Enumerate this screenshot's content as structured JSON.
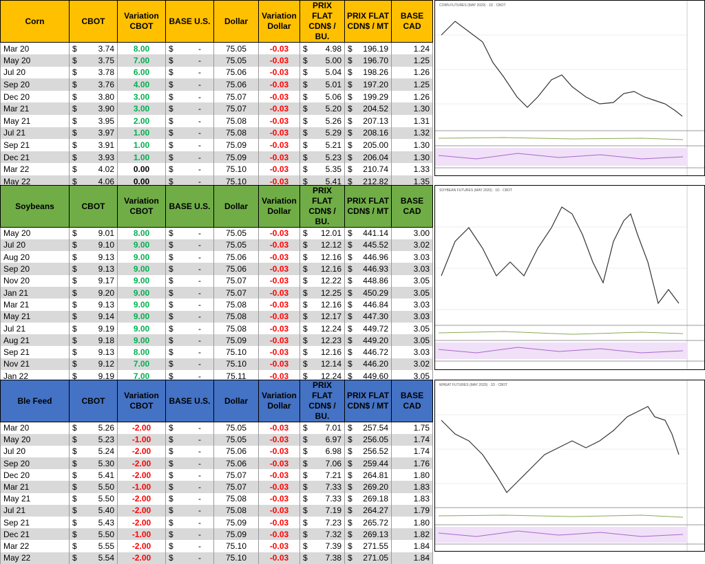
{
  "currency_symbol": "$",
  "tables": [
    {
      "header": [
        "Corn",
        "CBOT",
        "Variation CBOT",
        "BASE U.S.",
        "Dollar",
        "Variation Dollar",
        "PRIX FLAT CDN$ / BU.",
        "PRIX FLAT CDN$ / MT",
        "BASE CAD"
      ],
      "chart_title": "CORN FUTURES (MAY 2020) · 1D · CBOT",
      "rows": [
        [
          "Mar 20",
          "3.74",
          "8.00",
          "-",
          "75.05",
          "-0.03",
          "4.98",
          "196.19",
          "1.24"
        ],
        [
          "May 20",
          "3.75",
          "7.00",
          "-",
          "75.05",
          "-0.03",
          "5.00",
          "196.70",
          "1.25"
        ],
        [
          "Jul 20",
          "3.78",
          "6.00",
          "-",
          "75.06",
          "-0.03",
          "5.04",
          "198.26",
          "1.26"
        ],
        [
          "Sep 20",
          "3.76",
          "4.00",
          "-",
          "75.06",
          "-0.03",
          "5.01",
          "197.20",
          "1.25"
        ],
        [
          "Dec 20",
          "3.80",
          "3.00",
          "-",
          "75.07",
          "-0.03",
          "5.06",
          "199.29",
          "1.26"
        ],
        [
          "Mar 21",
          "3.90",
          "3.00",
          "-",
          "75.07",
          "-0.03",
          "5.20",
          "204.52",
          "1.30"
        ],
        [
          "May 21",
          "3.95",
          "2.00",
          "-",
          "75.08",
          "-0.03",
          "5.26",
          "207.13",
          "1.31"
        ],
        [
          "Jul 21",
          "3.97",
          "1.00",
          "-",
          "75.08",
          "-0.03",
          "5.29",
          "208.16",
          "1.32"
        ],
        [
          "Sep 21",
          "3.91",
          "1.00",
          "-",
          "75.09",
          "-0.03",
          "5.21",
          "205.00",
          "1.30"
        ],
        [
          "Dec 21",
          "3.93",
          "1.00",
          "-",
          "75.09",
          "-0.03",
          "5.23",
          "206.04",
          "1.30"
        ],
        [
          "Mar 22",
          "4.02",
          "0.00",
          "-",
          "75.10",
          "-0.03",
          "5.35",
          "210.74",
          "1.33"
        ],
        [
          "May 22",
          "4.06",
          "0.00",
          "-",
          "75.10",
          "-0.03",
          "5.41",
          "212.82",
          "1.35"
        ]
      ]
    },
    {
      "header": [
        "Soybeans",
        "CBOT",
        "Variation CBOT",
        "BASE U.S.",
        "Dollar",
        "Variation Dollar",
        "PRIX FLAT CDN$ / BU.",
        "PRIX FLAT CDN$ / MT",
        "BASE CAD"
      ],
      "chart_title": "SOYBEAN FUTURES (MAY 2020) · 1D · CBOT",
      "rows": [
        [
          "May 20",
          "9.01",
          "8.00",
          "-",
          "75.05",
          "-0.03",
          "12.01",
          "441.14",
          "3.00"
        ],
        [
          "Jul 20",
          "9.10",
          "9.00",
          "-",
          "75.05",
          "-0.03",
          "12.12",
          "445.52",
          "3.02"
        ],
        [
          "Aug 20",
          "9.13",
          "9.00",
          "-",
          "75.06",
          "-0.03",
          "12.16",
          "446.96",
          "3.03"
        ],
        [
          "Sep 20",
          "9.13",
          "9.00",
          "-",
          "75.06",
          "-0.03",
          "12.16",
          "446.93",
          "3.03"
        ],
        [
          "Nov 20",
          "9.17",
          "9.00",
          "-",
          "75.07",
          "-0.03",
          "12.22",
          "448.86",
          "3.05"
        ],
        [
          "Jan 21",
          "9.20",
          "9.00",
          "-",
          "75.07",
          "-0.03",
          "12.25",
          "450.29",
          "3.05"
        ],
        [
          "Mar 21",
          "9.13",
          "9.00",
          "-",
          "75.08",
          "-0.03",
          "12.16",
          "446.84",
          "3.03"
        ],
        [
          "May 21",
          "9.14",
          "9.00",
          "-",
          "75.08",
          "-0.03",
          "12.17",
          "447.30",
          "3.03"
        ],
        [
          "Jul 21",
          "9.19",
          "9.00",
          "-",
          "75.08",
          "-0.03",
          "12.24",
          "449.72",
          "3.05"
        ],
        [
          "Aug 21",
          "9.18",
          "9.00",
          "-",
          "75.09",
          "-0.03",
          "12.23",
          "449.20",
          "3.05"
        ],
        [
          "Sep 21",
          "9.13",
          "8.00",
          "-",
          "75.10",
          "-0.03",
          "12.16",
          "446.72",
          "3.03"
        ],
        [
          "Nov 21",
          "9.12",
          "7.00",
          "-",
          "75.10",
          "-0.03",
          "12.14",
          "446.20",
          "3.02"
        ],
        [
          "Jan 22",
          "9.19",
          "7.00",
          "-",
          "75.11",
          "-0.03",
          "12.24",
          "449.60",
          "3.05"
        ]
      ]
    },
    {
      "header": [
        "Ble Feed",
        "CBOT",
        "Variation CBOT",
        "BASE U.S.",
        "Dollar",
        "Variation Dollar",
        "PRIX FLAT CDN$ / BU.",
        "PRIX FLAT CDN$ / MT",
        "BASE CAD"
      ],
      "chart_title": "WHEAT FUTURES (MAY 2020) · 1D · CBOT",
      "rows": [
        [
          "Mar 20",
          "5.26",
          "-2.00",
          "-",
          "75.05",
          "-0.03",
          "7.01",
          "257.54",
          "1.75"
        ],
        [
          "May 20",
          "5.23",
          "-1.00",
          "-",
          "75.05",
          "-0.03",
          "6.97",
          "256.05",
          "1.74"
        ],
        [
          "Jul 20",
          "5.24",
          "-2.00",
          "-",
          "75.06",
          "-0.03",
          "6.98",
          "256.52",
          "1.74"
        ],
        [
          "Sep 20",
          "5.30",
          "-2.00",
          "-",
          "75.06",
          "-0.03",
          "7.06",
          "259.44",
          "1.76"
        ],
        [
          "Dec 20",
          "5.41",
          "-2.00",
          "-",
          "75.07",
          "-0.03",
          "7.21",
          "264.81",
          "1.80"
        ],
        [
          "Mar 21",
          "5.50",
          "-1.00",
          "-",
          "75.07",
          "-0.03",
          "7.33",
          "269.20",
          "1.83"
        ],
        [
          "May 21",
          "5.50",
          "-2.00",
          "-",
          "75.08",
          "-0.03",
          "7.33",
          "269.18",
          "1.83"
        ],
        [
          "Jul 21",
          "5.40",
          "-2.00",
          "-",
          "75.08",
          "-0.03",
          "7.19",
          "264.27",
          "1.79"
        ],
        [
          "Sep 21",
          "5.43",
          "-2.00",
          "-",
          "75.09",
          "-0.03",
          "7.23",
          "265.72",
          "1.80"
        ],
        [
          "Dec 21",
          "5.50",
          "-1.00",
          "-",
          "75.09",
          "-0.03",
          "7.32",
          "269.13",
          "1.82"
        ],
        [
          "Mar 22",
          "5.55",
          "-2.00",
          "-",
          "75.10",
          "-0.03",
          "7.39",
          "271.55",
          "1.84"
        ],
        [
          "May 22",
          "5.54",
          "-2.00",
          "-",
          "75.10",
          "-0.03",
          "7.38",
          "271.05",
          "1.84"
        ]
      ]
    }
  ]
}
